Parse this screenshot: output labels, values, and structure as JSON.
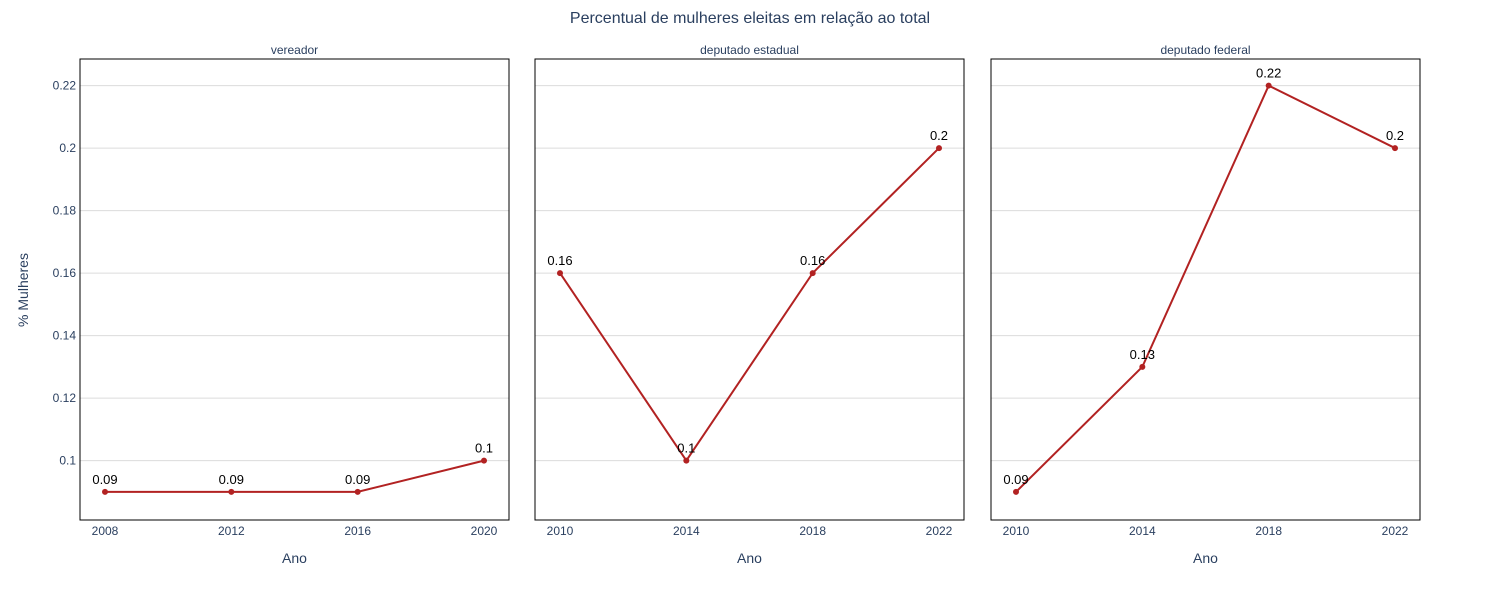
{
  "chart_data": {
    "type": "line",
    "title": "Percentual de mulheres eleitas em relação ao total",
    "ylabel": "% Mulheres",
    "ylim": [
      0.081,
      0.2285
    ],
    "yticks": [
      0.1,
      0.12,
      0.14,
      0.16,
      0.18,
      0.2,
      0.22
    ],
    "ytick_labels": [
      "0.1",
      "0.12",
      "0.14",
      "0.16",
      "0.18",
      "0.2",
      "0.22"
    ],
    "grid": true,
    "line_color": "#b22222",
    "panels": [
      {
        "title": "vereador",
        "xlabel": "Ano",
        "x": [
          2008,
          2012,
          2016,
          2020
        ],
        "x_labels": [
          "2008",
          "2012",
          "2016",
          "2020"
        ],
        "values": [
          0.09,
          0.09,
          0.09,
          0.1
        ],
        "data_labels": [
          "0.09",
          "0.09",
          "0.09",
          "0.1"
        ]
      },
      {
        "title": "deputado estadual",
        "xlabel": "Ano",
        "x": [
          2010,
          2014,
          2018,
          2022
        ],
        "x_labels": [
          "2010",
          "2014",
          "2018",
          "2022"
        ],
        "values": [
          0.16,
          0.1,
          0.16,
          0.2
        ],
        "data_labels": [
          "0.16",
          "0.1",
          "0.16",
          "0.2"
        ]
      },
      {
        "title": "deputado federal",
        "xlabel": "Ano",
        "x": [
          2010,
          2014,
          2018,
          2022
        ],
        "x_labels": [
          "2010",
          "2014",
          "2018",
          "2022"
        ],
        "values": [
          0.09,
          0.13,
          0.22,
          0.2
        ],
        "data_labels": [
          "0.09",
          "0.13",
          "0.22",
          "0.2"
        ]
      }
    ]
  }
}
